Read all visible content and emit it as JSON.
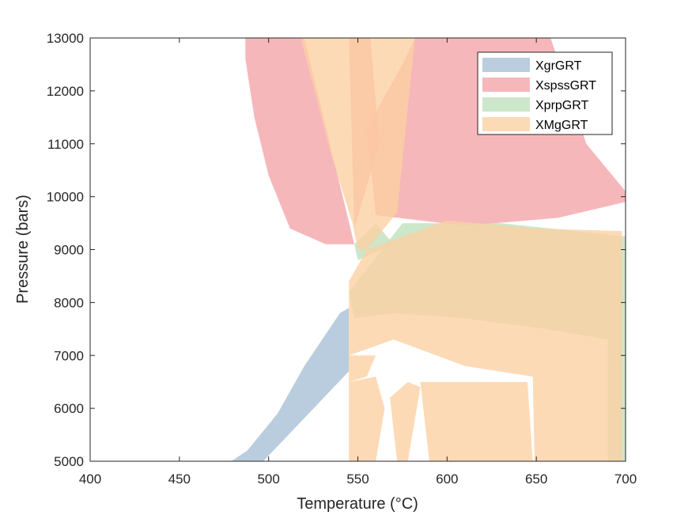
{
  "chart_data": {
    "type": "area",
    "title": "",
    "xlabel": "Temperature (°C)",
    "ylabel": "Pressure (bars)",
    "xlim": [
      400,
      700
    ],
    "ylim": [
      5000,
      13000
    ],
    "x_ticks": [
      "400",
      "450",
      "500",
      "550",
      "600",
      "650",
      "700"
    ],
    "y_ticks": [
      "5000",
      "6000",
      "7000",
      "8000",
      "9000",
      "10000",
      "11000",
      "12000",
      "13000"
    ],
    "grid": false,
    "legend_position": "top-right",
    "series": [
      {
        "name": "XgrGRT",
        "color": "#a6bfd6",
        "regions": [
          [
            [
              479,
              5000
            ],
            [
              497,
              5000
            ],
            [
              545,
              6700
            ],
            [
              545,
              7900
            ],
            [
              540,
              7800
            ],
            [
              520,
              6800
            ],
            [
              505,
              5900
            ],
            [
              488,
              5200
            ]
          ]
        ]
      },
      {
        "name": "XspssGRT",
        "color": "#f4a3a8",
        "regions": [
          [
            [
              487,
              13000
            ],
            [
              520,
              13000
            ],
            [
              548,
              9100
            ],
            [
              532,
              9100
            ],
            [
              512,
              9400
            ],
            [
              500,
              10400
            ],
            [
              492,
              11500
            ],
            [
              487,
              12600
            ]
          ],
          [
            [
              545,
              13000
            ],
            [
              557,
              13000
            ],
            [
              562,
              11000
            ],
            [
              548,
              9400
            ]
          ],
          [
            [
              582,
              13000
            ],
            [
              658,
              13000
            ],
            [
              678,
              11000
            ],
            [
              700,
              10100
            ],
            [
              700,
              9900
            ],
            [
              662,
              9600
            ],
            [
              610,
              9450
            ],
            [
              560,
              9650
            ],
            [
              555,
              11300
            ],
            [
              575,
              12500
            ]
          ]
        ]
      },
      {
        "name": "XprpGRT",
        "color": "#bfe0bd",
        "regions": [
          [
            [
              545,
              8200
            ],
            [
              575,
              9500
            ],
            [
              630,
              9500
            ],
            [
              700,
              9250
            ],
            [
              700,
              5000
            ],
            [
              690,
              5000
            ],
            [
              690,
              7300
            ],
            [
              655,
              7500
            ],
            [
              610,
              7700
            ],
            [
              570,
              7800
            ],
            [
              548,
              7700
            ]
          ],
          [
            [
              548,
              9100
            ],
            [
              560,
              9500
            ],
            [
              570,
              9100
            ],
            [
              550,
              8800
            ]
          ]
        ]
      },
      {
        "name": "XMgGRT",
        "color": "#fdd0a2",
        "regions": [
          [
            [
              518,
              13000
            ],
            [
              582,
              13000
            ],
            [
              572,
              9700
            ],
            [
              555,
              9000
            ],
            [
              550,
              9000
            ],
            [
              547,
              9500
            ],
            [
              535,
              10800
            ]
          ],
          [
            [
              545,
              8400
            ],
            [
              555,
              9000
            ],
            [
              600,
              9550
            ],
            [
              650,
              9400
            ],
            [
              698,
              9350
            ],
            [
              698,
              5000
            ],
            [
              649,
              5000
            ],
            [
              648,
              6600
            ],
            [
              610,
              6800
            ],
            [
              570,
              7300
            ],
            [
              545,
              7000
            ]
          ],
          [
            [
              545,
              7000
            ],
            [
              560,
              7000
            ],
            [
              555,
              6600
            ],
            [
              545,
              6500
            ]
          ],
          [
            [
              545,
              6500
            ],
            [
              560,
              6600
            ],
            [
              565,
              6000
            ],
            [
              560,
              5000
            ],
            [
              545,
              5000
            ]
          ],
          [
            [
              568,
              6200
            ],
            [
              578,
              6500
            ],
            [
              585,
              6400
            ],
            [
              578,
              5000
            ],
            [
              572,
              5000
            ]
          ],
          [
            [
              585,
              6500
            ],
            [
              645,
              6500
            ],
            [
              648,
              5000
            ],
            [
              590,
              5000
            ]
          ]
        ]
      }
    ]
  }
}
